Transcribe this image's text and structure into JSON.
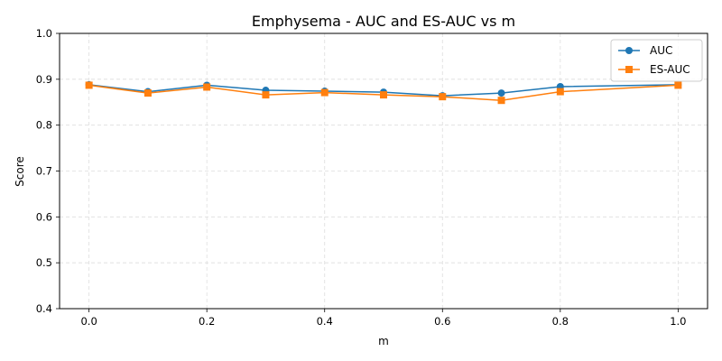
{
  "chart_data": {
    "type": "line",
    "title": "Emphysema - AUC and ES-AUC vs m",
    "xlabel": "m",
    "ylabel": "Score",
    "x": [
      0.0,
      0.1,
      0.2,
      0.3,
      0.4,
      0.5,
      0.6,
      0.7,
      0.8,
      1.0
    ],
    "xlim": [
      -0.05,
      1.05
    ],
    "ylim": [
      0.4,
      1.0
    ],
    "xticks": [
      0.0,
      0.2,
      0.4,
      0.6,
      0.8,
      1.0
    ],
    "xtick_labels": [
      "0.0",
      "0.2",
      "0.4",
      "0.6",
      "0.8",
      "1.0"
    ],
    "yticks": [
      0.4,
      0.5,
      0.6,
      0.7,
      0.8,
      0.9,
      1.0
    ],
    "ytick_labels": [
      "0.4",
      "0.5",
      "0.6",
      "0.7",
      "0.8",
      "0.9",
      "1.0"
    ],
    "grid": true,
    "legend_position": "top-right",
    "series": [
      {
        "name": "AUC",
        "color": "#1f77b4",
        "marker": "circle",
        "values": [
          0.888,
          0.873,
          0.887,
          0.876,
          0.874,
          0.872,
          0.864,
          0.87,
          0.884,
          0.888
        ]
      },
      {
        "name": "ES-AUC",
        "color": "#ff7f0e",
        "marker": "square",
        "values": [
          0.887,
          0.87,
          0.883,
          0.866,
          0.871,
          0.866,
          0.862,
          0.854,
          0.873,
          0.887
        ]
      }
    ]
  }
}
